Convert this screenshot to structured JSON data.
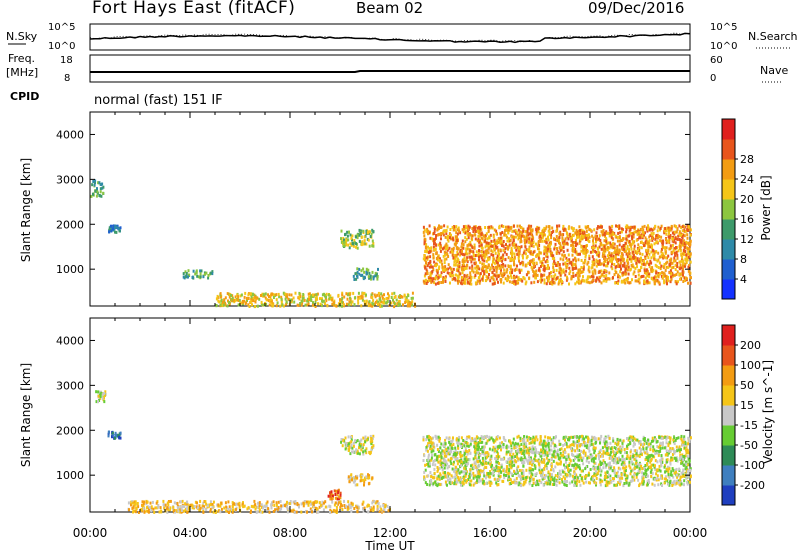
{
  "header": {
    "title": "Fort Hays East (fitACF)",
    "beam": "Beam 02",
    "date": "09/Dec/2016"
  },
  "status_panels": {
    "nsky_label": "N.Sky",
    "nsearch_label": "N.Search",
    "noise_ticks": [
      "10^5",
      "10^0"
    ],
    "freq_label": "Freq.",
    "freq_unit": "[MHz]",
    "freq_ticks": [
      "18",
      "8"
    ],
    "nave_label": "Nave",
    "nave_ticks": [
      "60",
      "0"
    ],
    "cpid_label": "CPID",
    "cpid_text": "normal (fast) 151 IF"
  },
  "chart_data": [
    {
      "type": "heatmap",
      "title": "",
      "xlabel": "",
      "ylabel": "Slant Range [km]",
      "xlim": [
        0,
        24
      ],
      "ylim": [
        180,
        4500
      ],
      "x_ticks": [
        "00:00",
        "04:00",
        "08:00",
        "12:00",
        "16:00",
        "20:00",
        "00:00"
      ],
      "y_ticks": [
        1000,
        2000,
        3000,
        4000
      ],
      "colorbar": {
        "label": "Power [dB]",
        "ticks": [
          4,
          8,
          12,
          16,
          20,
          24,
          28
        ],
        "colors": [
          "#1432ff",
          "#1f5fcf",
          "#2e8aa8",
          "#3d9a6a",
          "#8cc63f",
          "#f5c518",
          "#f39c12",
          "#e8551c",
          "#e0201e"
        ]
      },
      "regions": [
        {
          "t": [
            0.0,
            0.5
          ],
          "r": [
            2650,
            3000
          ],
          "level": 3
        },
        {
          "t": [
            0.7,
            1.2
          ],
          "r": [
            1850,
            2000
          ],
          "level": 2
        },
        {
          "t": [
            3.7,
            4.9
          ],
          "r": [
            830,
            1000
          ],
          "level": 3
        },
        {
          "t": [
            5.0,
            13.0
          ],
          "r": [
            200,
            500
          ],
          "level": 5
        },
        {
          "t": [
            10.0,
            11.3
          ],
          "r": [
            1500,
            1900
          ],
          "level": 4
        },
        {
          "t": [
            10.5,
            11.5
          ],
          "r": [
            800,
            1050
          ],
          "level": 3
        },
        {
          "t": [
            13.3,
            24.0
          ],
          "r": [
            700,
            2000
          ],
          "level": 6
        }
      ]
    },
    {
      "type": "heatmap",
      "title": "",
      "xlabel": "Time UT",
      "ylabel": "Slant Range [km]",
      "xlim": [
        0,
        24
      ],
      "ylim": [
        180,
        4500
      ],
      "x_ticks": [
        "00:00",
        "04:00",
        "08:00",
        "12:00",
        "16:00",
        "20:00",
        "00:00"
      ],
      "y_ticks": [
        1000,
        2000,
        3000,
        4000
      ],
      "colorbar": {
        "label": "Velocity [m s^-1]",
        "ticks": [
          200,
          100,
          50,
          15,
          -15,
          -50,
          -100,
          -200
        ],
        "colors": [
          "#1f3fbf",
          "#3f7fbf",
          "#2e8b57",
          "#66cc33",
          "#c8c8c8",
          "#f5c518",
          "#f39c12",
          "#e8551c",
          "#e0201e"
        ]
      },
      "regions": [
        {
          "t": [
            0.2,
            0.6
          ],
          "r": [
            2650,
            2900
          ],
          "level": 4
        },
        {
          "t": [
            0.7,
            1.2
          ],
          "r": [
            1850,
            2000
          ],
          "level": 1
        },
        {
          "t": [
            10.0,
            11.3
          ],
          "r": [
            1500,
            1900
          ],
          "level": 4
        },
        {
          "t": [
            10.3,
            11.3
          ],
          "r": [
            800,
            1050
          ],
          "level": 5
        },
        {
          "t": [
            9.5,
            10.0
          ],
          "r": [
            500,
            700
          ],
          "level": 7
        },
        {
          "t": [
            1.5,
            12.0
          ],
          "r": [
            200,
            450
          ],
          "level": 5
        },
        {
          "t": [
            13.3,
            24.0
          ],
          "r": [
            800,
            1900
          ],
          "level": 4
        }
      ]
    }
  ]
}
